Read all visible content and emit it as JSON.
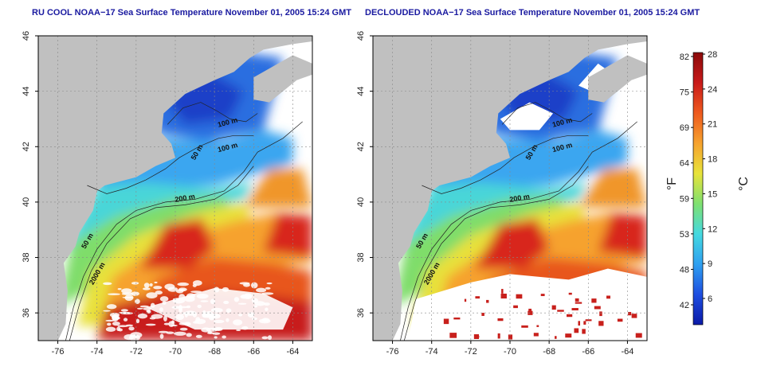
{
  "panels": [
    {
      "title": "RU COOL NOAA−17 Sea Surface Temperature November 01, 2005 15:24 GMT",
      "mode": "cool",
      "x_ticks": [
        "-76",
        "-74",
        "-72",
        "-70",
        "-68",
        "-66",
        "-64"
      ],
      "y_ticks": [
        "36",
        "38",
        "40",
        "42",
        "44",
        "46"
      ],
      "contours": [
        "100 m",
        "100 m",
        "50 m",
        "200 m",
        "50 m",
        "2000 m"
      ]
    },
    {
      "title": "DECLOUDED NOAA−17 Sea Surface Temperature November 01, 2005 15:24 GMT",
      "mode": "declouded",
      "x_ticks": [
        "-76",
        "-74",
        "-72",
        "-70",
        "-68",
        "-66",
        "-64"
      ],
      "y_ticks": [
        "36",
        "38",
        "40",
        "42",
        "44",
        "46"
      ],
      "contours": [
        "100 m",
        "100 m",
        "50 m",
        "200 m",
        "50 m",
        "2000 m"
      ]
    }
  ],
  "colorbar": {
    "fahrenheit_unit": "°F",
    "celsius_unit": "°C",
    "fahrenheit_ticks": [
      "82",
      "75",
      "69",
      "64",
      "59",
      "53",
      "48",
      "42"
    ],
    "celsius_ticks": [
      "28",
      "24",
      "21",
      "18",
      "15",
      "12",
      "9",
      "6"
    ]
  },
  "colors": {
    "land": "#c0c0c0",
    "cloud": "#ffffff",
    "title": "#1a1aa0"
  }
}
